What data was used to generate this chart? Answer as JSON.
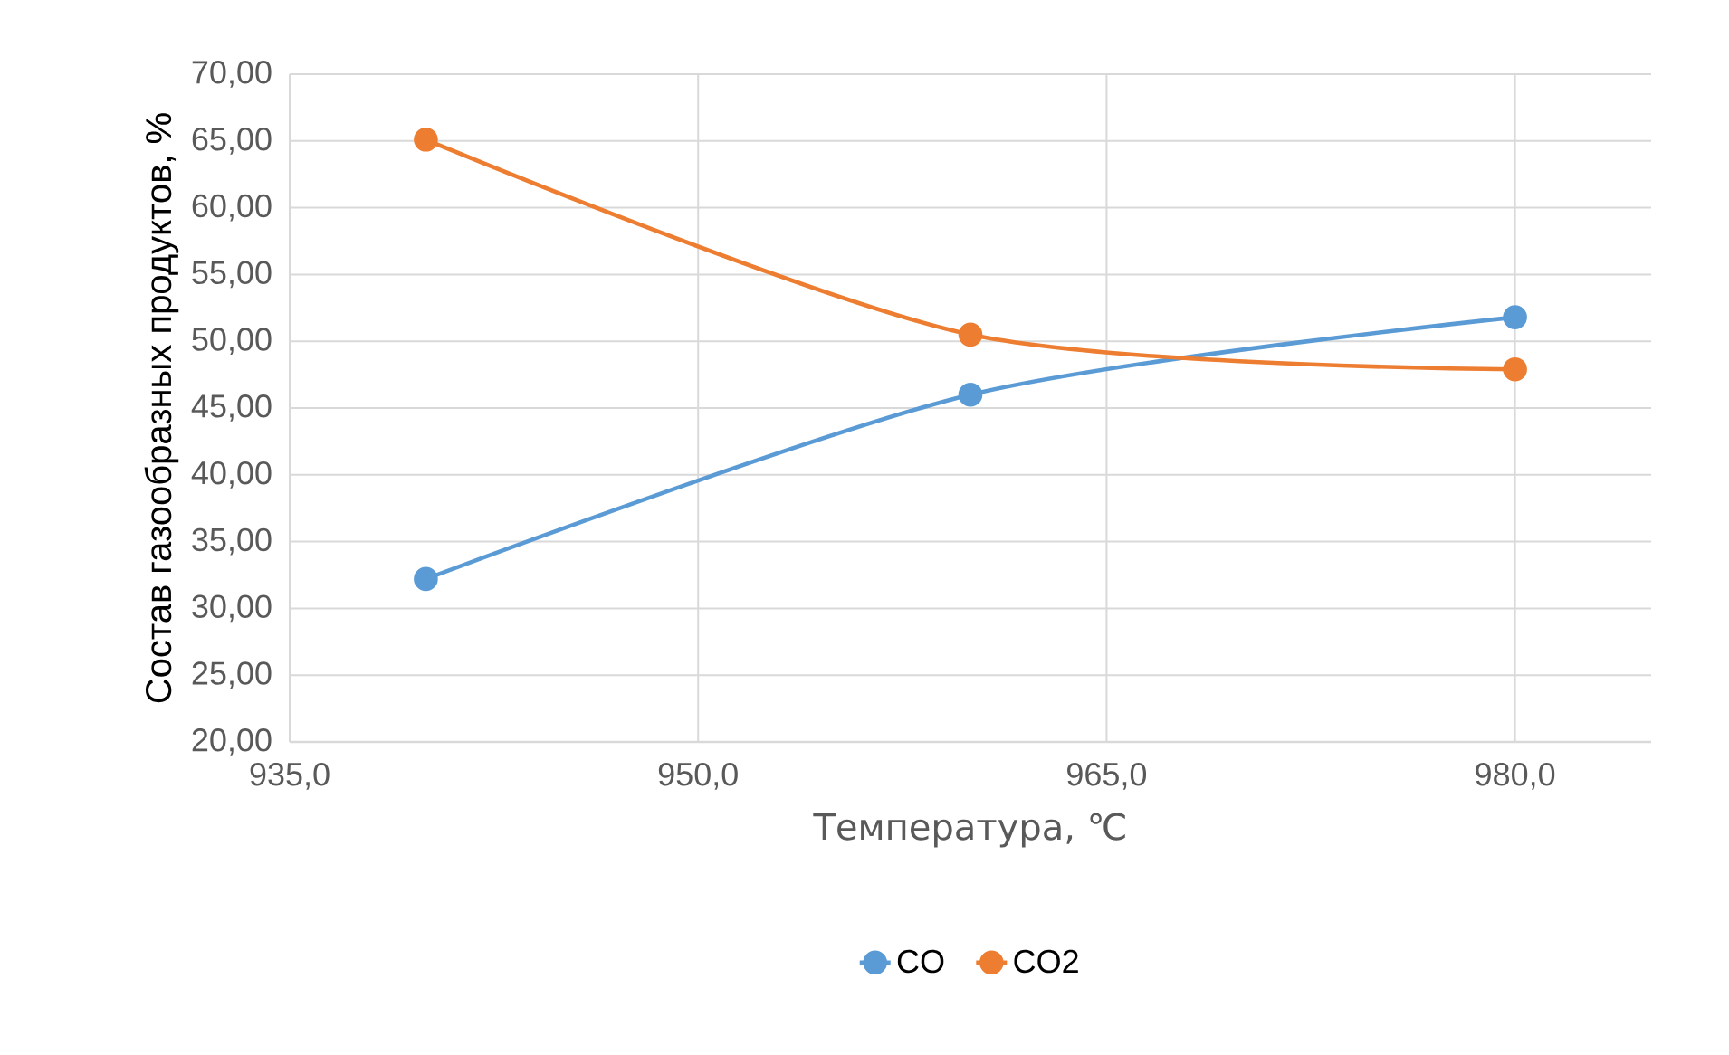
{
  "chart_data": {
    "type": "line",
    "xlabel": "Температура, ℃",
    "ylabel": "Состав газообразных продуктов, %",
    "x": [
      940,
      960,
      980
    ],
    "series": [
      {
        "name": "CO",
        "color": "#5b9bd5",
        "values": [
          32.2,
          46.0,
          51.8
        ]
      },
      {
        "name": "CO2",
        "color": "#ed7d31",
        "values": [
          65.1,
          50.5,
          47.9
        ]
      }
    ],
    "xlim": [
      935,
      985
    ],
    "ylim": [
      20,
      70
    ],
    "xticks": [
      {
        "value": 935,
        "label": "935,0"
      },
      {
        "value": 950,
        "label": "950,0"
      },
      {
        "value": 965,
        "label": "965,0"
      },
      {
        "value": 980,
        "label": "980,0"
      }
    ],
    "yticks": [
      {
        "value": 20,
        "label": "20,00"
      },
      {
        "value": 25,
        "label": "25,00"
      },
      {
        "value": 30,
        "label": "30,00"
      },
      {
        "value": 35,
        "label": "35,00"
      },
      {
        "value": 40,
        "label": "40,00"
      },
      {
        "value": 45,
        "label": "45,00"
      },
      {
        "value": 50,
        "label": "50,00"
      },
      {
        "value": 55,
        "label": "55,00"
      },
      {
        "value": 60,
        "label": "60,00"
      },
      {
        "value": 65,
        "label": "65,00"
      },
      {
        "value": 70,
        "label": "70,00"
      }
    ],
    "grid": true,
    "legend": "bottom",
    "marker": "circle",
    "line_style": "solid"
  }
}
